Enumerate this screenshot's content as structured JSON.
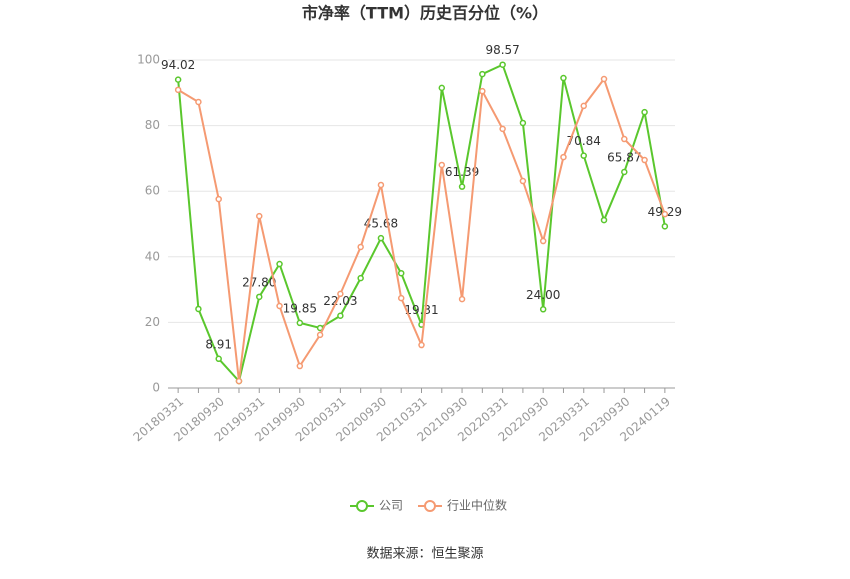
{
  "chart_data": {
    "type": "line",
    "title": "市净率（TTM）历史百分位（%）",
    "categories": [
      "20180331",
      null,
      "20180930",
      null,
      "20190331",
      null,
      "20190930",
      null,
      "20200331",
      null,
      "20200930",
      null,
      "20210331",
      null,
      "20210930",
      null,
      "20220331",
      null,
      "20220930",
      null,
      "20230331",
      null,
      "20230930",
      null,
      "20240119"
    ],
    "series": [
      {
        "name": "公司",
        "color": "#5ac72d",
        "values": [
          94.02,
          24.1,
          8.91,
          2.1,
          27.8,
          37.8,
          19.85,
          18.3,
          22.03,
          33.5,
          45.68,
          35.0,
          19.31,
          91.5,
          61.39,
          95.7,
          98.57,
          80.8,
          24.0,
          94.5,
          70.84,
          51.2,
          65.87,
          84.1,
          49.29
        ],
        "value_labels": [
          "94.02",
          null,
          "8.91",
          null,
          "27.80",
          null,
          "19.85",
          null,
          "22.03",
          null,
          "45.68",
          null,
          "19.31",
          null,
          "61.39",
          null,
          "98.57",
          null,
          "24.00",
          null,
          "70.84",
          null,
          "65.87",
          null,
          "49.29"
        ]
      },
      {
        "name": "行业中位数",
        "color": "#f59a72",
        "values": [
          90.9,
          87.2,
          57.6,
          2.1,
          52.4,
          25.0,
          6.7,
          16.2,
          28.7,
          43.0,
          61.9,
          27.4,
          13.1,
          68.0,
          27.1,
          90.5,
          79.0,
          63.1,
          44.8,
          70.4,
          86.0,
          94.2,
          75.9,
          69.5,
          53.0
        ]
      }
    ],
    "ylim": [
      0,
      100
    ],
    "yticks": [
      0,
      20,
      40,
      60,
      80,
      100
    ],
    "grid": true,
    "source": "数据来源：恒生聚源"
  }
}
